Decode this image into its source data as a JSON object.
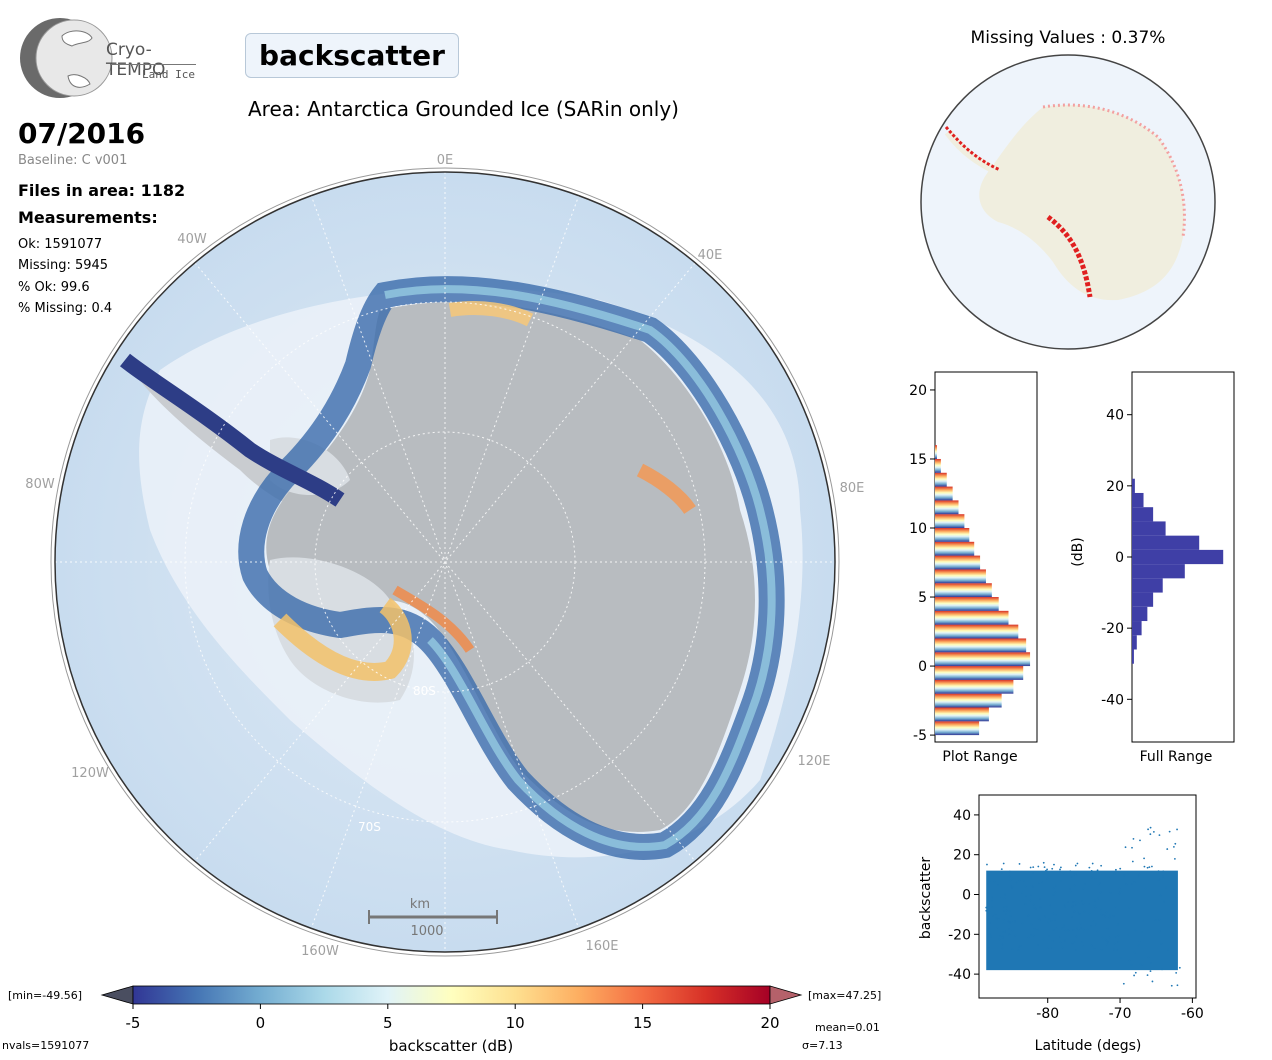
{
  "logo": {
    "name": "Cryo-TEMPO",
    "sub": "Land Ice"
  },
  "variable": "backscatter",
  "area_title": "Area: Antarctica Grounded Ice (SARin only)",
  "date": "07/2016",
  "baseline": "Baseline: C v001",
  "files": "Files in area: 1182",
  "measurements_header": "Measurements:",
  "stats": {
    "ok": "Ok: 1591077",
    "missing": "Missing: 5945",
    "pct_ok": "% Ok: 99.6",
    "pct_missing": "% Missing: 0.4"
  },
  "map": {
    "lon_labels": [
      "0E",
      "40E",
      "80E",
      "120E",
      "160E",
      "160W",
      "120W",
      "80W",
      "40W"
    ],
    "lat_labels": [
      "80S",
      "70S"
    ],
    "scale_unit": "km",
    "scale_value": "1000"
  },
  "missing_values_title": "Missing Values : 0.37%",
  "colorbar": {
    "min_label": "[min=-49.56]",
    "max_label": "[max=47.25]",
    "ticks": [
      "-5",
      "0",
      "5",
      "10",
      "15",
      "20"
    ],
    "label": "backscatter (dB)",
    "mean": "mean=0.01",
    "sigma": "σ=7.13",
    "nvals": "nvals=1591077",
    "colors": [
      "#313695",
      "#4575b4",
      "#74add1",
      "#abd9e9",
      "#e0f3f8",
      "#ffffbf",
      "#fee090",
      "#fdae61",
      "#f46d43",
      "#d73027",
      "#a50026"
    ]
  },
  "chart_data": [
    {
      "type": "bar",
      "orientation": "horizontal",
      "xlabel": "Plot Range",
      "ylim": [
        -5.5,
        21.3
      ],
      "yticks": [
        "20",
        "15",
        "10",
        "5",
        "0",
        "-5"
      ],
      "bins": [
        -5,
        -4,
        -3,
        -2,
        -1,
        0,
        1,
        2,
        3,
        4,
        5,
        6,
        7,
        8,
        9,
        10,
        11,
        12,
        13,
        14,
        15
      ],
      "values": [
        0.45,
        0.55,
        0.68,
        0.8,
        0.9,
        0.97,
        0.93,
        0.85,
        0.75,
        0.65,
        0.58,
        0.52,
        0.46,
        0.4,
        0.35,
        0.3,
        0.24,
        0.18,
        0.12,
        0.06,
        0.02
      ]
    },
    {
      "type": "bar",
      "orientation": "horizontal",
      "xlabel": "Full Range",
      "ylabel": "(dB)",
      "ylim": [
        -52,
        52
      ],
      "yticks": [
        "40",
        "20",
        "0",
        "-20",
        "-40"
      ],
      "bins": [
        -30,
        -26,
        -22,
        -18,
        -14,
        -10,
        -6,
        -2,
        2,
        6,
        10,
        14,
        18
      ],
      "values": [
        0.02,
        0.05,
        0.1,
        0.16,
        0.22,
        0.32,
        0.55,
        0.95,
        0.7,
        0.35,
        0.22,
        0.12,
        0.03
      ]
    },
    {
      "type": "scatter",
      "xlabel": "Latitude (degs)",
      "ylabel": "backscatter",
      "xlim": [
        -89.5,
        -59.5
      ],
      "ylim": [
        -52,
        50
      ],
      "xticks": [
        "-80",
        "-70",
        "-60"
      ],
      "yticks": [
        "40",
        "20",
        "0",
        "-20",
        "-40"
      ],
      "series": [
        {
          "color": "#1f77b4"
        }
      ]
    }
  ]
}
